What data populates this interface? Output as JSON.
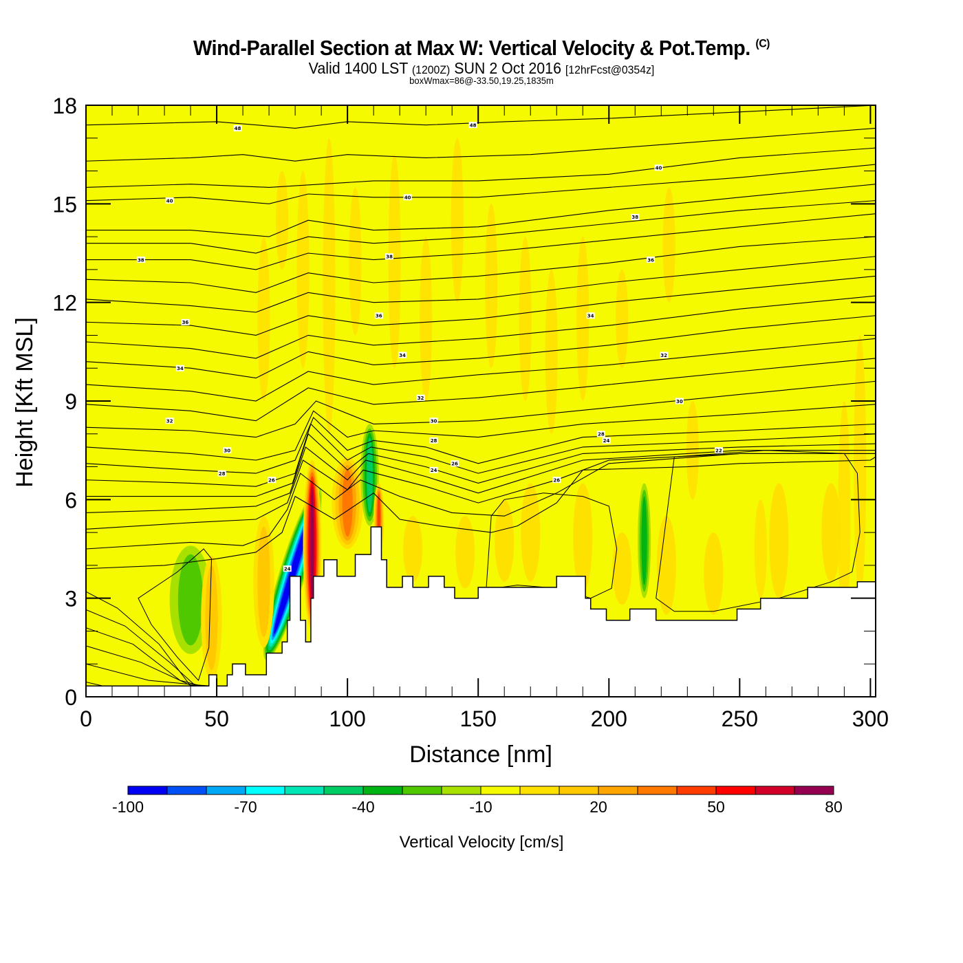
{
  "header": {
    "title": "Wind-Parallel Section at Max W: Vertical Velocity & Pot.Temp.",
    "copyright_mark": "(C)",
    "valid_prefix": "Valid 1400 LST",
    "valid_utc": "(1200Z)",
    "valid_date": "SUN 2 Oct 2016",
    "forecast": "[12hrFcst@0354z]",
    "box_info": "boxWmax=86@-33.50,19.25,1835m"
  },
  "chart_data": {
    "type": "heatmap",
    "title": "Wind-Parallel Section at Max W: Vertical Velocity & Pot.Temp.",
    "xlabel": "Distance [nm]",
    "ylabel": "Height [Kft MSL]",
    "xlim": [
      0,
      302
    ],
    "ylim": [
      0,
      18
    ],
    "x_ticks": [
      0,
      50,
      100,
      150,
      200,
      250,
      300
    ],
    "x_tick_labels": [
      "0",
      "50",
      "100",
      "150",
      "200",
      "250",
      "300"
    ],
    "y_ticks": [
      0,
      3,
      6,
      9,
      12,
      15,
      18
    ],
    "y_tick_labels": [
      "0",
      "3",
      "6",
      "9",
      "12",
      "15",
      "18"
    ],
    "x_minor_step": 10,
    "y_minor_step": 1,
    "background_color": "#f5fa00",
    "colorbar": {
      "title": "Vertical Velocity [cm/s]",
      "bounds": [
        -100,
        -90,
        -80,
        -70,
        -60,
        -50,
        -40,
        -30,
        -20,
        -10,
        0,
        10,
        20,
        30,
        40,
        50,
        60,
        70,
        80
      ],
      "tick_values": [
        -100,
        -70,
        -40,
        -10,
        20,
        50,
        80
      ],
      "tick_labels": [
        "-100",
        "-70",
        "-40",
        "-10",
        "20",
        "50",
        "80"
      ],
      "colors": [
        "#0000f5",
        "#0050f5",
        "#00a8f5",
        "#00ffff",
        "#00e6b4",
        "#00cc64",
        "#00b414",
        "#50c800",
        "#a8e100",
        "#f5fa00",
        "#ffe100",
        "#ffc800",
        "#ffa500",
        "#ff7800",
        "#ff3c00",
        "#ff0000",
        "#d20028",
        "#960050"
      ]
    },
    "terrain": {
      "label": "terrain",
      "x": [
        0,
        47,
        47,
        50,
        50,
        54,
        54,
        56,
        56,
        61,
        61,
        69,
        69,
        75,
        75,
        77,
        77,
        78,
        78,
        82,
        82,
        84,
        84,
        86,
        86,
        87,
        87,
        91,
        91,
        96,
        96,
        103,
        103,
        109,
        109,
        113,
        113,
        115,
        115,
        121,
        121,
        125,
        125,
        131,
        131,
        137,
        137,
        141,
        141,
        150,
        150,
        180,
        180,
        183,
        183,
        191,
        191,
        193,
        193,
        199,
        199,
        208,
        208,
        218,
        218,
        249,
        249,
        258,
        258,
        276,
        276,
        295,
        295,
        302
      ],
      "y": [
        0.33,
        0.33,
        0.67,
        0.67,
        0.33,
        0.33,
        0.67,
        0.67,
        1.0,
        1.0,
        0.67,
        0.67,
        1.33,
        1.33,
        1.67,
        1.67,
        2.33,
        2.33,
        3.67,
        3.67,
        2.33,
        2.33,
        1.67,
        1.67,
        3.0,
        3.0,
        3.67,
        3.67,
        4.17,
        4.17,
        3.67,
        3.67,
        4.33,
        4.33,
        5.17,
        5.17,
        4.17,
        4.17,
        3.33,
        3.33,
        3.67,
        3.67,
        3.33,
        3.33,
        3.67,
        3.67,
        3.33,
        3.33,
        3.0,
        3.0,
        3.33,
        3.33,
        3.67,
        3.67,
        3.67,
        3.67,
        3.0,
        3.0,
        2.67,
        2.67,
        2.33,
        2.33,
        2.67,
        2.67,
        2.33,
        2.33,
        2.67,
        2.67,
        3.0,
        3.0,
        3.33,
        3.33,
        3.5,
        3.5
      ]
    },
    "contour_variable": "Potential Temperature",
    "contour_labels": [
      {
        "value": "48",
        "x": 58,
        "y": 17.3
      },
      {
        "value": "48",
        "x": 148,
        "y": 17.4
      },
      {
        "value": "40",
        "x": 32,
        "y": 15.1
      },
      {
        "value": "40",
        "x": 123,
        "y": 15.2
      },
      {
        "value": "40",
        "x": 219,
        "y": 16.1
      },
      {
        "value": "38",
        "x": 21,
        "y": 13.3
      },
      {
        "value": "38",
        "x": 116,
        "y": 13.4
      },
      {
        "value": "38",
        "x": 210,
        "y": 14.6
      },
      {
        "value": "36",
        "x": 38,
        "y": 11.4
      },
      {
        "value": "36",
        "x": 112,
        "y": 11.6
      },
      {
        "value": "36",
        "x": 216,
        "y": 13.3
      },
      {
        "value": "34",
        "x": 36,
        "y": 10.0
      },
      {
        "value": "34",
        "x": 121,
        "y": 10.4
      },
      {
        "value": "34",
        "x": 193,
        "y": 11.6
      },
      {
        "value": "32",
        "x": 32,
        "y": 8.4
      },
      {
        "value": "32",
        "x": 128,
        "y": 9.1
      },
      {
        "value": "32",
        "x": 221,
        "y": 10.4
      },
      {
        "value": "30",
        "x": 54,
        "y": 7.5
      },
      {
        "value": "30",
        "x": 133,
        "y": 8.4
      },
      {
        "value": "30",
        "x": 227,
        "y": 9.0
      },
      {
        "value": "28",
        "x": 52,
        "y": 6.8
      },
      {
        "value": "28",
        "x": 133,
        "y": 7.8
      },
      {
        "value": "28",
        "x": 197,
        "y": 8.0
      },
      {
        "value": "26",
        "x": 71,
        "y": 6.6
      },
      {
        "value": "26",
        "x": 141,
        "y": 7.1
      },
      {
        "value": "24",
        "x": 133,
        "y": 6.9
      },
      {
        "value": "24",
        "x": 199,
        "y": 7.8
      },
      {
        "value": "24",
        "x": 77,
        "y": 3.9
      },
      {
        "value": "26",
        "x": 180,
        "y": 6.6
      },
      {
        "value": "22",
        "x": 242,
        "y": 7.5
      }
    ],
    "contour_levels": [
      48,
      46,
      44,
      42,
      40,
      39,
      38,
      37,
      36,
      35,
      34,
      33,
      32,
      31,
      30,
      29,
      28,
      27,
      26,
      25,
      24,
      23,
      22,
      21,
      20,
      19,
      18
    ],
    "contour_lines": [
      {
        "level": 48,
        "x": [
          0,
          50,
          80,
          100,
          130,
          160,
          200,
          302
        ],
        "y": [
          17.4,
          17.5,
          17.3,
          17.5,
          17.4,
          17.5,
          17.6,
          18.0
        ]
      },
      {
        "level": 46,
        "x": [
          0,
          40,
          60,
          80,
          100,
          130,
          170,
          220,
          302
        ],
        "y": [
          16.3,
          16.4,
          16.5,
          16.3,
          16.5,
          16.4,
          16.5,
          16.8,
          17.3
        ]
      },
      {
        "level": 44,
        "x": [
          0,
          40,
          70,
          90,
          110,
          150,
          200,
          250,
          302
        ],
        "y": [
          15.5,
          15.6,
          15.5,
          15.6,
          15.7,
          15.7,
          15.9,
          16.4,
          16.7
        ]
      },
      {
        "level": 42,
        "x": [
          0,
          40,
          70,
          85,
          110,
          150,
          200,
          250,
          302
        ],
        "y": [
          15.1,
          15.2,
          15.0,
          15.3,
          15.2,
          15.2,
          15.5,
          15.8,
          16.2
        ]
      },
      {
        "level": 40,
        "x": [
          0,
          40,
          70,
          85,
          110,
          150,
          200,
          250,
          302
        ],
        "y": [
          14.2,
          14.2,
          14.0,
          14.5,
          14.2,
          14.3,
          14.8,
          15.2,
          15.6
        ]
      },
      {
        "level": 39,
        "x": [
          0,
          40,
          65,
          85,
          110,
          150,
          200,
          250,
          302
        ],
        "y": [
          13.8,
          13.8,
          13.5,
          14.0,
          13.8,
          14.0,
          14.4,
          14.8,
          15.1
        ]
      },
      {
        "level": 38,
        "x": [
          0,
          40,
          65,
          85,
          110,
          150,
          200,
          250,
          302
        ],
        "y": [
          13.3,
          13.3,
          13.0,
          13.5,
          13.3,
          13.5,
          13.9,
          14.3,
          14.7
        ]
      },
      {
        "level": 37,
        "x": [
          0,
          40,
          65,
          85,
          110,
          150,
          200,
          250,
          302
        ],
        "y": [
          12.7,
          12.6,
          12.3,
          12.9,
          12.6,
          12.8,
          13.2,
          13.7,
          14.0
        ]
      },
      {
        "level": 36,
        "x": [
          0,
          40,
          65,
          85,
          110,
          150,
          200,
          250,
          302
        ],
        "y": [
          12.1,
          11.9,
          11.7,
          12.3,
          12.0,
          12.1,
          12.6,
          13.0,
          13.4
        ]
      },
      {
        "level": 35,
        "x": [
          0,
          40,
          65,
          85,
          110,
          150,
          200,
          250,
          302
        ],
        "y": [
          11.4,
          11.3,
          11.0,
          11.6,
          11.3,
          11.5,
          12.0,
          12.4,
          12.8
        ]
      },
      {
        "level": 34,
        "x": [
          0,
          40,
          65,
          85,
          110,
          150,
          200,
          250,
          302
        ],
        "y": [
          10.8,
          10.6,
          10.3,
          11.0,
          10.7,
          10.9,
          11.3,
          11.8,
          12.2
        ]
      },
      {
        "level": 33,
        "x": [
          0,
          40,
          65,
          85,
          110,
          150,
          200,
          250,
          302
        ],
        "y": [
          10.2,
          10.0,
          9.7,
          10.5,
          10.1,
          10.3,
          10.7,
          11.2,
          11.6
        ]
      },
      {
        "level": 32,
        "x": [
          0,
          40,
          65,
          85,
          110,
          150,
          200,
          250,
          302
        ],
        "y": [
          9.5,
          9.3,
          9.0,
          9.9,
          9.5,
          9.8,
          10.1,
          10.5,
          10.9
        ]
      },
      {
        "level": 31,
        "x": [
          0,
          40,
          65,
          85,
          110,
          150,
          200,
          250,
          302
        ],
        "y": [
          8.9,
          8.7,
          8.4,
          9.4,
          8.9,
          9.1,
          9.5,
          9.9,
          10.3
        ]
      },
      {
        "level": 30,
        "x": [
          0,
          40,
          65,
          80,
          88,
          110,
          150,
          200,
          250,
          302
        ],
        "y": [
          8.2,
          8.1,
          7.9,
          8.3,
          9.0,
          8.3,
          8.4,
          8.8,
          9.2,
          9.6
        ]
      },
      {
        "level": 29,
        "x": [
          0,
          40,
          65,
          80,
          87,
          100,
          110,
          150,
          190,
          250,
          302
        ],
        "y": [
          7.6,
          7.4,
          7.2,
          7.5,
          8.7,
          7.9,
          8.1,
          7.9,
          8.3,
          8.6,
          8.9
        ]
      },
      {
        "level": 28,
        "x": [
          0,
          40,
          65,
          80,
          87,
          100,
          110,
          130,
          150,
          190,
          250,
          302
        ],
        "y": [
          7.1,
          6.9,
          6.8,
          7.2,
          8.5,
          7.5,
          7.8,
          7.6,
          7.1,
          7.9,
          8.1,
          8.3
        ]
      },
      {
        "level": 27,
        "x": [
          0,
          40,
          65,
          80,
          86,
          100,
          109,
          130,
          150,
          190,
          250,
          302
        ],
        "y": [
          6.6,
          6.5,
          6.4,
          6.8,
          8.3,
          7.2,
          7.6,
          7.3,
          6.8,
          7.6,
          7.8,
          8.0
        ]
      },
      {
        "level": 26,
        "x": [
          0,
          40,
          65,
          79,
          85,
          100,
          108,
          130,
          150,
          190,
          250,
          302
        ],
        "y": [
          6.1,
          6.1,
          6.1,
          6.5,
          8.0,
          6.9,
          7.4,
          7.0,
          6.5,
          7.4,
          7.6,
          7.7
        ]
      },
      {
        "level": 25,
        "x": [
          0,
          40,
          65,
          78,
          84,
          100,
          107,
          130,
          150,
          190,
          250,
          302
        ],
        "y": [
          5.6,
          5.7,
          5.8,
          6.2,
          7.6,
          6.6,
          7.2,
          6.7,
          6.2,
          7.2,
          7.5,
          7.5
        ]
      },
      {
        "level": 24,
        "x": [
          0,
          40,
          65,
          77,
          83,
          100,
          106,
          130,
          150,
          180,
          200,
          250,
          302
        ],
        "y": [
          5.1,
          5.3,
          5.4,
          5.9,
          7.2,
          6.3,
          6.9,
          6.4,
          5.9,
          6.6,
          7.2,
          7.4,
          7.4
        ]
      },
      {
        "level": 23,
        "x": [
          0,
          40,
          60,
          70,
          77,
          82,
          95,
          105,
          120,
          140,
          160,
          180,
          200,
          250,
          302
        ],
        "y": [
          4.5,
          4.7,
          4.6,
          4.9,
          5.7,
          6.8,
          6.0,
          6.6,
          6.1,
          5.6,
          5.5,
          6.2,
          7.1,
          7.4,
          7.4
        ]
      },
      {
        "level": 22,
        "x": [
          0,
          30,
          50,
          65,
          75,
          80,
          95,
          110,
          120,
          135,
          155,
          165,
          180,
          190,
          230,
          250,
          300,
          302
        ],
        "y": [
          3.9,
          4.0,
          4.2,
          4.4,
          5.0,
          6.1,
          5.4,
          6.2,
          5.4,
          5.2,
          5.0,
          5.2,
          5.9,
          6.9,
          7.0,
          7.1,
          7.2,
          7.3
        ]
      }
    ],
    "wvel_features": [
      {
        "kind": "downdraft",
        "min_cm_s": -100,
        "x_range": [
          74,
          84
        ],
        "y_range": [
          1.0,
          6.5
        ]
      },
      {
        "kind": "updraft",
        "max_cm_s": 80,
        "x_range": [
          83,
          90
        ],
        "y_range": [
          2.0,
          7.2
        ]
      },
      {
        "kind": "updraft",
        "max_cm_s": 40,
        "x_range": [
          94,
          106
        ],
        "y_range": [
          4.5,
          7.3
        ]
      },
      {
        "kind": "downdraft",
        "min_cm_s": -40,
        "x_range": [
          105,
          112
        ],
        "y_range": [
          5.2,
          8.3
        ]
      },
      {
        "kind": "updraft",
        "max_cm_s": 50,
        "x_range": [
          110,
          114
        ],
        "y_range": [
          4.3,
          6.5
        ]
      },
      {
        "kind": "downdraft",
        "min_cm_s": -20,
        "x_range": [
          32,
          48
        ],
        "y_range": [
          1.3,
          4.6
        ]
      },
      {
        "kind": "downdraft",
        "min_cm_s": -30,
        "x_range": [
          211,
          216
        ],
        "y_range": [
          3.0,
          6.5
        ]
      },
      {
        "kind": "updraft",
        "max_cm_s": 20,
        "x_range": [
          64,
          72
        ],
        "y_range": [
          1.5,
          5.5
        ]
      },
      {
        "kind": "updraft",
        "max_cm_s": 20,
        "x_range": [
          44,
          52
        ],
        "y_range": [
          0.5,
          4.3
        ]
      }
    ]
  }
}
